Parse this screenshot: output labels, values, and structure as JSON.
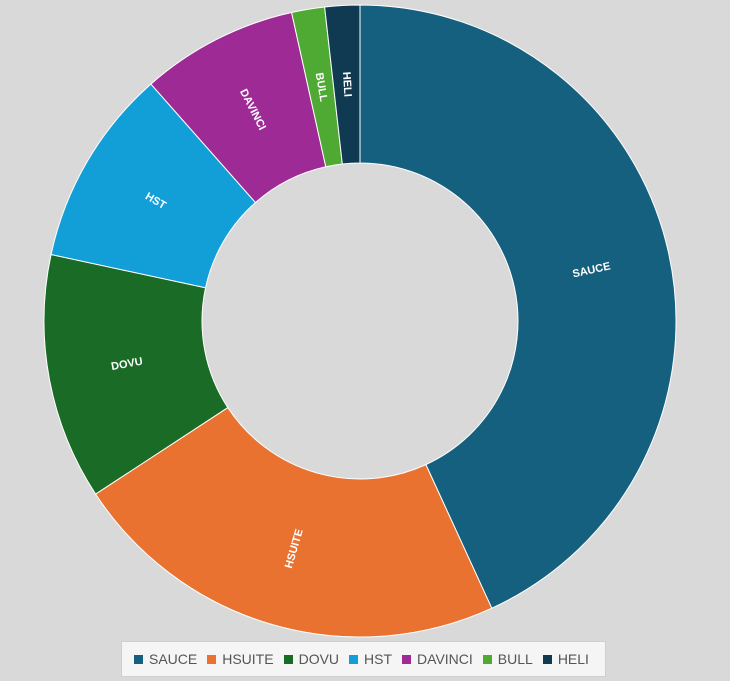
{
  "chart_data": {
    "type": "pie",
    "variant": "donut",
    "legend_position": "bottom",
    "categories": [
      "SAUCE",
      "HSUITE",
      "DOVU",
      "HST",
      "DAVINCI",
      "BULL",
      "HELI"
    ],
    "values": [
      43.5,
      22.8,
      12.7,
      10.2,
      8.1,
      1.7,
      1.8
    ],
    "unit": "%",
    "colors": [
      "#16607f",
      "#e97230",
      "#1a6b25",
      "#129fd8",
      "#9e2a96",
      "#4faa33",
      "#103a52"
    ]
  }
}
